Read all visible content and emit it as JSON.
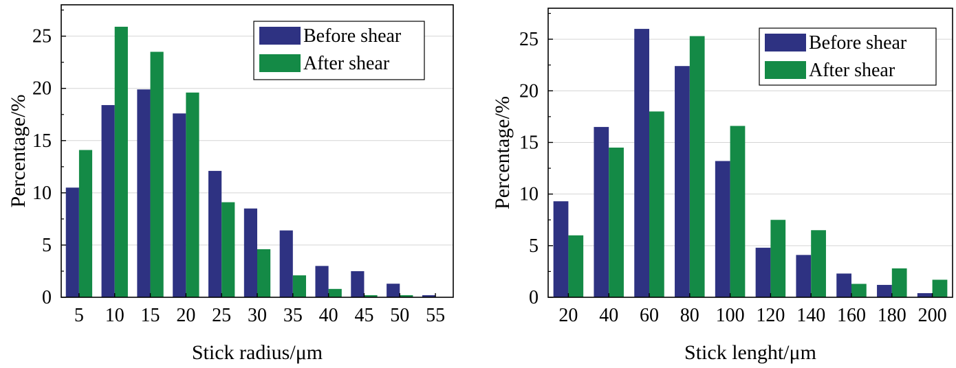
{
  "colors": {
    "before": "#2e3282",
    "after": "#148a46",
    "grid": "#d4d4d4",
    "axis": "#000000"
  },
  "chart_data": [
    {
      "type": "bar",
      "title": "",
      "xlabel": "Stick radius/μm",
      "ylabel": "Percentage/%",
      "categories": [
        "5",
        "10",
        "15",
        "20",
        "25",
        "30",
        "35",
        "40",
        "45",
        "50",
        "55"
      ],
      "ylim": [
        0,
        28
      ],
      "yticks": [
        0,
        5,
        10,
        15,
        20,
        25
      ],
      "grid": true,
      "legend": "top-right",
      "series": [
        {
          "name": "Before shear",
          "values": [
            10.5,
            18.4,
            19.9,
            17.6,
            12.1,
            8.5,
            6.4,
            3.0,
            2.5,
            1.3,
            0.2
          ]
        },
        {
          "name": "After shear",
          "values": [
            14.1,
            25.9,
            23.5,
            19.6,
            9.1,
            4.6,
            2.1,
            0.8,
            0.2,
            0.2,
            0.0
          ]
        }
      ]
    },
    {
      "type": "bar",
      "title": "",
      "xlabel": "Stick lenght/μm",
      "ylabel": "Percentage/%",
      "categories": [
        "20",
        "40",
        "60",
        "80",
        "100",
        "120",
        "140",
        "160",
        "180",
        "200"
      ],
      "ylim": [
        0,
        28
      ],
      "yticks": [
        0,
        5,
        10,
        15,
        20,
        25
      ],
      "grid": true,
      "legend": "top-right",
      "series": [
        {
          "name": "Before shear",
          "values": [
            9.3,
            16.5,
            26.0,
            22.4,
            13.2,
            4.8,
            4.1,
            2.3,
            1.2,
            0.4
          ]
        },
        {
          "name": "After shear",
          "values": [
            6.0,
            14.5,
            18.0,
            25.3,
            16.6,
            7.5,
            6.5,
            1.3,
            2.8,
            1.7
          ]
        }
      ]
    }
  ]
}
